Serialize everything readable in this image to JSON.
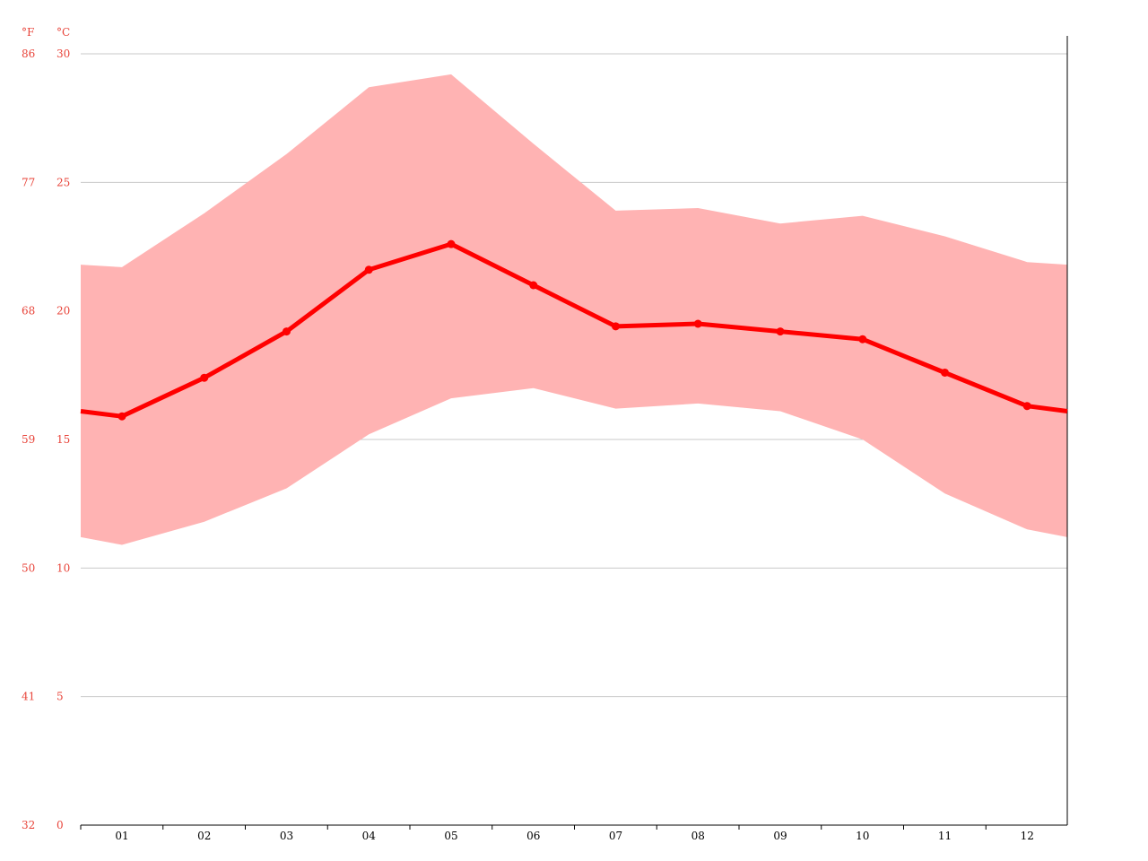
{
  "chart_data": {
    "type": "line",
    "title": "",
    "xlabel": "",
    "ylabel": "",
    "units": {
      "left": "°F",
      "right": "°C"
    },
    "categories": [
      "01",
      "02",
      "03",
      "04",
      "05",
      "06",
      "07",
      "08",
      "09",
      "10",
      "11",
      "12"
    ],
    "ylim": [
      0,
      30
    ],
    "yticks_c": [
      0,
      5,
      10,
      15,
      20,
      25,
      30
    ],
    "yticks_f": [
      32,
      41,
      50,
      59,
      68,
      77,
      86
    ],
    "grid": true,
    "series": [
      {
        "role": "mean",
        "values": [
          15.9,
          17.4,
          19.2,
          21.6,
          22.6,
          21.0,
          19.4,
          19.5,
          19.2,
          18.9,
          17.6,
          16.3
        ]
      },
      {
        "role": "min",
        "values": [
          10.9,
          11.8,
          13.1,
          15.2,
          16.6,
          17.0,
          16.2,
          16.4,
          16.1,
          15.0,
          12.9,
          11.5
        ]
      },
      {
        "role": "max",
        "values": [
          21.7,
          23.8,
          26.1,
          28.7,
          29.2,
          26.5,
          23.9,
          24.0,
          23.4,
          23.7,
          22.9,
          21.9
        ]
      }
    ],
    "edge": {
      "mean": [
        16.1,
        16.1
      ],
      "min": [
        11.2,
        11.2
      ],
      "max": [
        21.8,
        21.8
      ]
    },
    "colors": {
      "line": "#ff0000",
      "band": "#ffb3b3",
      "grid": "#c8c8c8",
      "axis_text": "#e8443a",
      "x_text": "#000000"
    }
  }
}
